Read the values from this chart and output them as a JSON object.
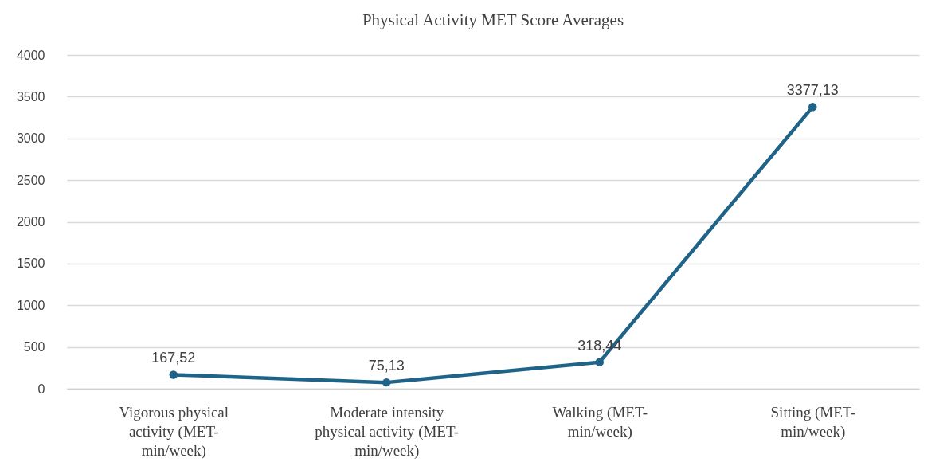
{
  "chart_data": {
    "type": "line",
    "title": "Physical Activity MET Score Averages",
    "categories": [
      "Vigorous physical\nactivity (MET-\nmin/week)",
      "Moderate intensity\nphysical activity (MET-\nmin/week)",
      "Walking (MET-\nmin/week)",
      "Sitting (MET-\nmin/week)"
    ],
    "series": [
      {
        "color": "#1f6389",
        "values": [
          167.52,
          75.13,
          318.44,
          3377.13
        ],
        "value_labels": [
          "167,52",
          "75,13",
          "318,44",
          "3377,13"
        ]
      }
    ],
    "ylim": [
      0,
      4000
    ],
    "yticks": [
      0,
      500,
      1000,
      1500,
      2000,
      2500,
      3000,
      3500,
      4000
    ],
    "grid": "y",
    "marker": "circle",
    "line_style": "solid"
  }
}
